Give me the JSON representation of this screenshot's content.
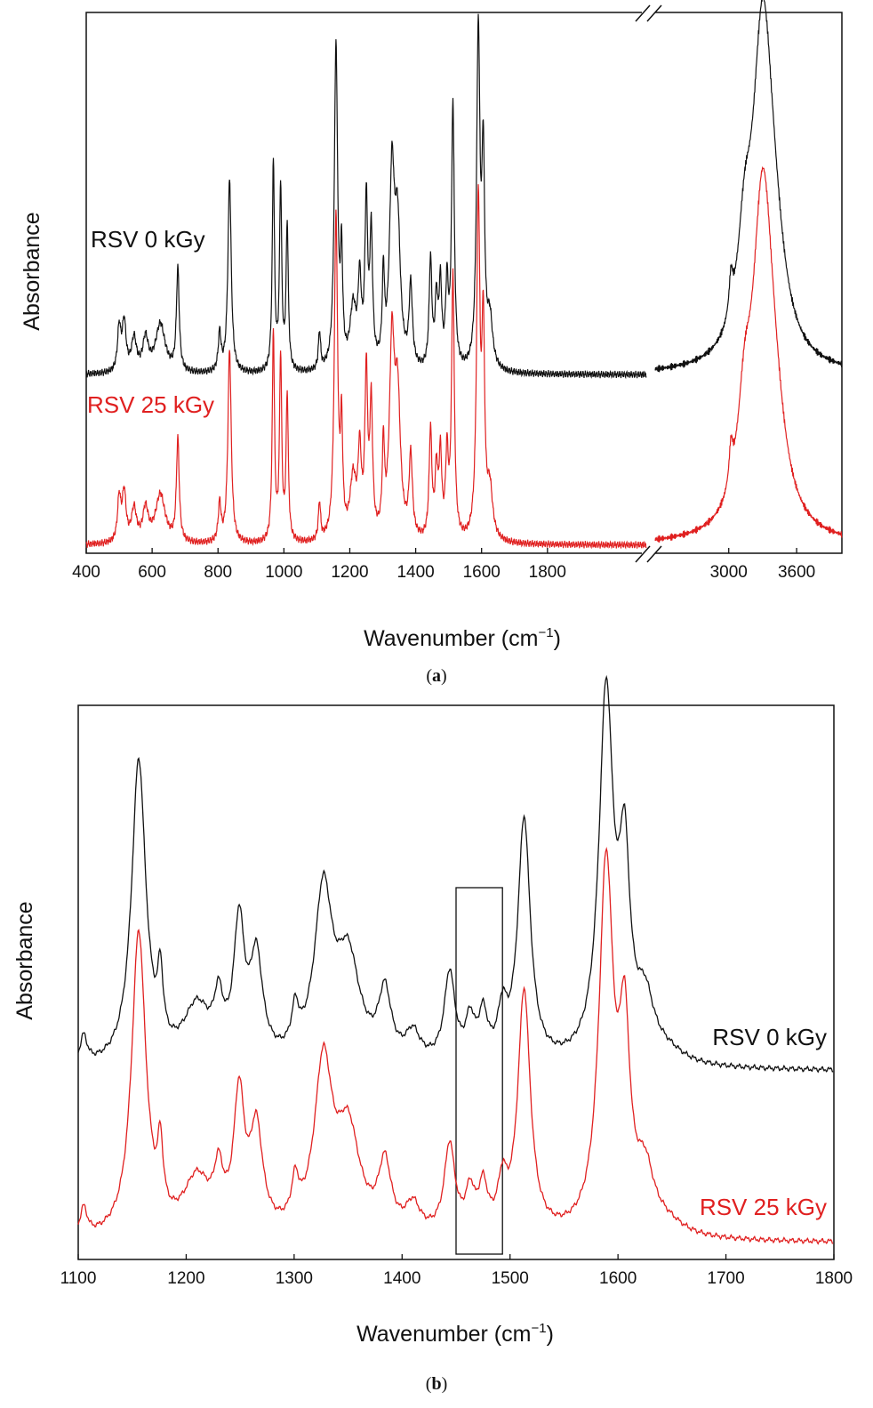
{
  "colors": {
    "series_0kgy": "#111111",
    "series_25kgy": "#e02020",
    "axis": "#111111"
  },
  "chart_data": [
    {
      "type": "line",
      "panel": "a",
      "caption_open": "(",
      "caption_letter": "a",
      "caption_close": ")",
      "xlabel_main": "Wavenumber (cm",
      "xlabel_sup": "−1",
      "xlabel_end": ")",
      "ylabel": "Absorbance",
      "axis_break": true,
      "segments": [
        {
          "xlim": [
            400,
            2100
          ],
          "ticks": [
            400,
            600,
            800,
            1000,
            1200,
            1400,
            1600,
            1800
          ]
        },
        {
          "xlim": [
            2350,
            4000
          ],
          "ticks": [
            3000,
            3600
          ]
        }
      ],
      "tick_labels": [
        "400",
        "600",
        "800",
        "1000",
        "1200",
        "1400",
        "1600",
        "1800",
        "3000",
        "3600"
      ],
      "ylim": [
        0,
        1
      ],
      "series": [
        {
          "name": "RSV 0 kGy",
          "label": "RSV 0 kGy",
          "offset": 0.33,
          "peaks_low": [
            [
              500,
              0.08,
              6
            ],
            [
              515,
              0.09,
              7
            ],
            [
              545,
              0.06,
              9
            ],
            [
              580,
              0.06,
              10
            ],
            [
              625,
              0.09,
              18
            ],
            [
              678,
              0.19,
              5
            ],
            [
              805,
              0.07,
              5
            ],
            [
              835,
              0.36,
              6
            ],
            [
              968,
              0.39,
              4
            ],
            [
              990,
              0.34,
              4
            ],
            [
              1010,
              0.27,
              4
            ],
            [
              1108,
              0.07,
              4
            ],
            [
              1158,
              0.6,
              6
            ],
            [
              1175,
              0.19,
              4
            ],
            [
              1210,
              0.11,
              11
            ],
            [
              1230,
              0.15,
              6
            ],
            [
              1250,
              0.3,
              5
            ],
            [
              1265,
              0.24,
              5
            ],
            [
              1302,
              0.16,
              4
            ],
            [
              1328,
              0.35,
              9
            ],
            [
              1345,
              0.25,
              10
            ],
            [
              1385,
              0.15,
              6
            ],
            [
              1445,
              0.2,
              5
            ],
            [
              1463,
              0.12,
              5
            ],
            [
              1475,
              0.15,
              5
            ],
            [
              1495,
              0.15,
              5
            ],
            [
              1513,
              0.49,
              5
            ],
            [
              1590,
              0.62,
              6
            ],
            [
              1605,
              0.37,
              5
            ],
            [
              1625,
              0.09,
              10
            ]
          ],
          "peaks_high": [
            [
              3020,
              0.07,
              20
            ],
            [
              3140,
              0.16,
              70
            ],
            [
              3300,
              0.6,
              110
            ],
            [
              3400,
              0.12,
              120
            ]
          ]
        },
        {
          "name": "RSV 25 kGy",
          "label": "RSV 25 kGy",
          "offset": 0.015,
          "peaks_low": [
            [
              500,
              0.08,
              6
            ],
            [
              515,
              0.09,
              7
            ],
            [
              545,
              0.06,
              9
            ],
            [
              580,
              0.06,
              10
            ],
            [
              625,
              0.09,
              18
            ],
            [
              678,
              0.19,
              5
            ],
            [
              805,
              0.07,
              5
            ],
            [
              835,
              0.36,
              6
            ],
            [
              968,
              0.39,
              4
            ],
            [
              990,
              0.34,
              4
            ],
            [
              1010,
              0.27,
              4
            ],
            [
              1108,
              0.07,
              4
            ],
            [
              1158,
              0.6,
              6
            ],
            [
              1175,
              0.19,
              4
            ],
            [
              1210,
              0.11,
              11
            ],
            [
              1230,
              0.15,
              6
            ],
            [
              1250,
              0.3,
              5
            ],
            [
              1265,
              0.24,
              5
            ],
            [
              1302,
              0.16,
              4
            ],
            [
              1328,
              0.35,
              9
            ],
            [
              1345,
              0.25,
              10
            ],
            [
              1385,
              0.15,
              6
            ],
            [
              1445,
              0.2,
              5
            ],
            [
              1463,
              0.12,
              5
            ],
            [
              1475,
              0.15,
              5
            ],
            [
              1495,
              0.15,
              5
            ],
            [
              1513,
              0.49,
              5
            ],
            [
              1590,
              0.62,
              6
            ],
            [
              1605,
              0.37,
              5
            ],
            [
              1625,
              0.09,
              10
            ]
          ],
          "peaks_high": [
            [
              3020,
              0.07,
              20
            ],
            [
              3140,
              0.16,
              70
            ],
            [
              3300,
              0.6,
              110
            ],
            [
              3400,
              0.12,
              120
            ]
          ]
        }
      ]
    },
    {
      "type": "line",
      "panel": "b",
      "caption_open": "(",
      "caption_letter": "b",
      "caption_close": ")",
      "xlabel_main": "Wavenumber (cm",
      "xlabel_sup": "−1",
      "xlabel_end": ")",
      "ylabel": "Absorbance",
      "xlim": [
        1100,
        1800
      ],
      "ticks": [
        1100,
        1200,
        1300,
        1400,
        1500,
        1600,
        1700,
        1800
      ],
      "tick_labels": [
        "1100",
        "1200",
        "1300",
        "1400",
        "1500",
        "1600",
        "1700",
        "1800"
      ],
      "ylim": [
        0,
        1
      ],
      "highlight_range": [
        1450,
        1493
      ],
      "series": [
        {
          "name": "RSV 0 kGy",
          "label": "RSV 0 kGy",
          "offset": 0.34,
          "peaks": [
            [
              1105,
              0.05,
              4
            ],
            [
              1156,
              0.55,
              8
            ],
            [
              1176,
              0.12,
              3
            ],
            [
              1210,
              0.1,
              15
            ],
            [
              1230,
              0.09,
              5
            ],
            [
              1249,
              0.24,
              6
            ],
            [
              1265,
              0.18,
              7
            ],
            [
              1301,
              0.07,
              4
            ],
            [
              1327,
              0.3,
              10
            ],
            [
              1350,
              0.18,
              13
            ],
            [
              1384,
              0.12,
              7
            ],
            [
              1410,
              0.05,
              8
            ],
            [
              1444,
              0.16,
              6
            ],
            [
              1463,
              0.07,
              5
            ],
            [
              1475,
              0.08,
              5
            ],
            [
              1493,
              0.08,
              5
            ],
            [
              1513,
              0.44,
              7
            ],
            [
              1589,
              0.66,
              8
            ],
            [
              1606,
              0.33,
              6
            ],
            [
              1625,
              0.1,
              10
            ],
            [
              1645,
              0.02,
              20
            ]
          ]
        },
        {
          "name": "RSV 25 kGy",
          "label": "RSV 25 kGy",
          "offset": 0.03,
          "peaks": [
            [
              1105,
              0.05,
              4
            ],
            [
              1156,
              0.55,
              8
            ],
            [
              1176,
              0.12,
              3
            ],
            [
              1210,
              0.1,
              15
            ],
            [
              1230,
              0.09,
              5
            ],
            [
              1249,
              0.24,
              6
            ],
            [
              1265,
              0.18,
              7
            ],
            [
              1301,
              0.07,
              4
            ],
            [
              1327,
              0.3,
              10
            ],
            [
              1350,
              0.18,
              13
            ],
            [
              1384,
              0.12,
              7
            ],
            [
              1410,
              0.05,
              8
            ],
            [
              1444,
              0.16,
              6
            ],
            [
              1463,
              0.07,
              5
            ],
            [
              1475,
              0.08,
              5
            ],
            [
              1493,
              0.08,
              5
            ],
            [
              1513,
              0.44,
              7
            ],
            [
              1589,
              0.66,
              8
            ],
            [
              1606,
              0.33,
              6
            ],
            [
              1625,
              0.1,
              10
            ],
            [
              1645,
              0.02,
              20
            ]
          ]
        }
      ]
    }
  ]
}
